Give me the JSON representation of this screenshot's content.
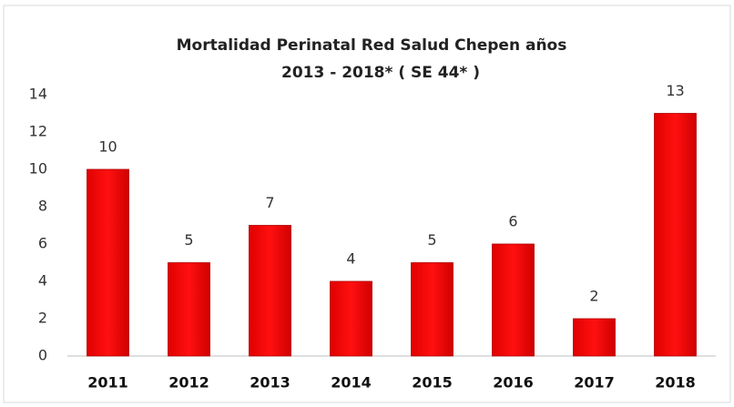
{
  "chart_data": {
    "type": "bar",
    "title": [
      "Mortalidad Perinatal Red Salud Chepen años",
      "2013 - 2018*  ( SE 44* )"
    ],
    "categories": [
      "2011",
      "2012",
      "2013",
      "2014",
      "2015",
      "2016",
      "2017",
      "2018"
    ],
    "values": [
      10,
      5,
      7,
      4,
      5,
      6,
      2,
      13
    ],
    "color": "#ff0000",
    "ylim": [
      0,
      14
    ],
    "yticks": [
      0,
      2,
      4,
      6,
      8,
      10,
      12,
      14
    ],
    "grid": false
  }
}
